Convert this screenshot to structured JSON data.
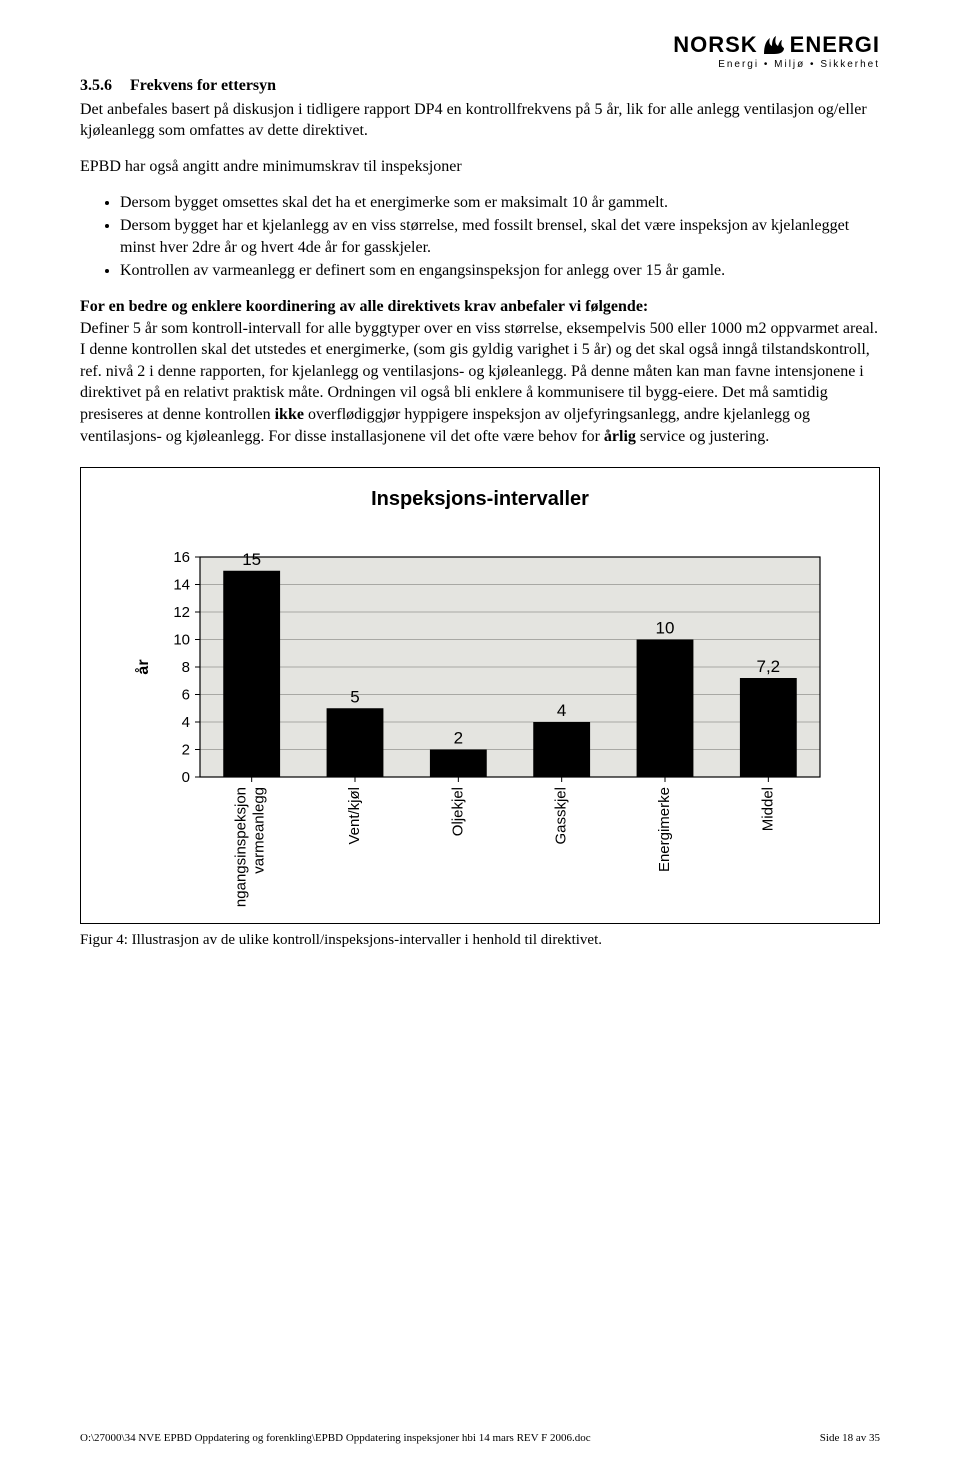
{
  "logo": {
    "main_left": "NORSK",
    "main_right": "ENERGI",
    "sub": "Energi • Miljø • Sikkerhet"
  },
  "heading": {
    "number": "3.5.6",
    "title": "Frekvens for ettersyn"
  },
  "para1": "Det anbefales basert på diskusjon i tidligere rapport DP4 en kontrollfrekvens på 5 år, lik for alle anlegg ventilasjon og/eller kjøleanlegg som omfattes av dette direktivet.",
  "para2": "EPBD har også angitt andre minimumskrav til inspeksjoner",
  "bullets": [
    "Dersom bygget omsettes skal det ha et energimerke som er maksimalt 10 år gammelt.",
    "Dersom bygget har et kjelanlegg av en viss størrelse, med fossilt brensel, skal det være inspeksjon av kjelanlegget minst hver 2dre år og hvert 4de år for gasskjeler.",
    "Kontrollen av varmeanlegg er definert som en engangsinspeksjon for anlegg over 15 år gamle."
  ],
  "para3_bold": "For en bedre og enklere koordinering av alle direktivets krav anbefaler vi følgende:",
  "para3_a": "Definer 5 år som kontroll-intervall for alle byggtyper over en viss størrelse, eksempelvis 500 eller 1000 m2 oppvarmet areal. I denne kontrollen skal det utstedes et energimerke, (som gis gyldig varighet i 5 år) og det skal også inngå tilstandskontroll, ref. nivå 2 i denne rapporten, for kjelanlegg og ventilasjons- og kjøleanlegg. På denne måten kan man favne intensjonene i direktivet på en relativt praktisk måte. Ordningen vil også bli enklere å kommunisere til bygg-eiere. Det må samtidig presiseres at denne kontrollen ",
  "para3_ikke": "ikke",
  "para3_b": " overflødiggjør hyppigere inspeksjon av oljefyringsanlegg, andre kjelanlegg og ventilasjons- og kjøleanlegg. For disse installasjonene vil det ofte være behov for ",
  "para3_arlig": "årlig",
  "para3_c": " service og justering.",
  "chart": {
    "title": "Inspeksjons-intervaller",
    "yaxis_title": "år",
    "categories": [
      "Engangsinspeksjon varmeanlegg",
      "Vent/kjøl",
      "Oljekjel",
      "Gasskjel",
      "Energimerke",
      "Middel"
    ],
    "values": [
      15,
      5,
      2,
      4,
      10,
      7.2
    ],
    "value_labels": [
      "15",
      "5",
      "2",
      "4",
      "10",
      "7,2"
    ],
    "ylim": [
      0,
      16
    ],
    "yticks": [
      0,
      2,
      4,
      6,
      8,
      10,
      12,
      14,
      16
    ],
    "bar_color": "#000000",
    "plot_bg": "#e4e4e0",
    "grid_color": "#a8a8a4",
    "border_color": "#000000"
  },
  "figure_caption": "Figur 4: Illustrasjon av de ulike kontroll/inspeksjons-intervaller i henhold til direktivet.",
  "footer_left": "O:\\27000\\34 NVE EPBD Oppdatering og forenkling\\EPBD Oppdatering inspeksjoner hbi 14 mars REV F 2006.doc",
  "footer_right": "Side 18 av 35"
}
